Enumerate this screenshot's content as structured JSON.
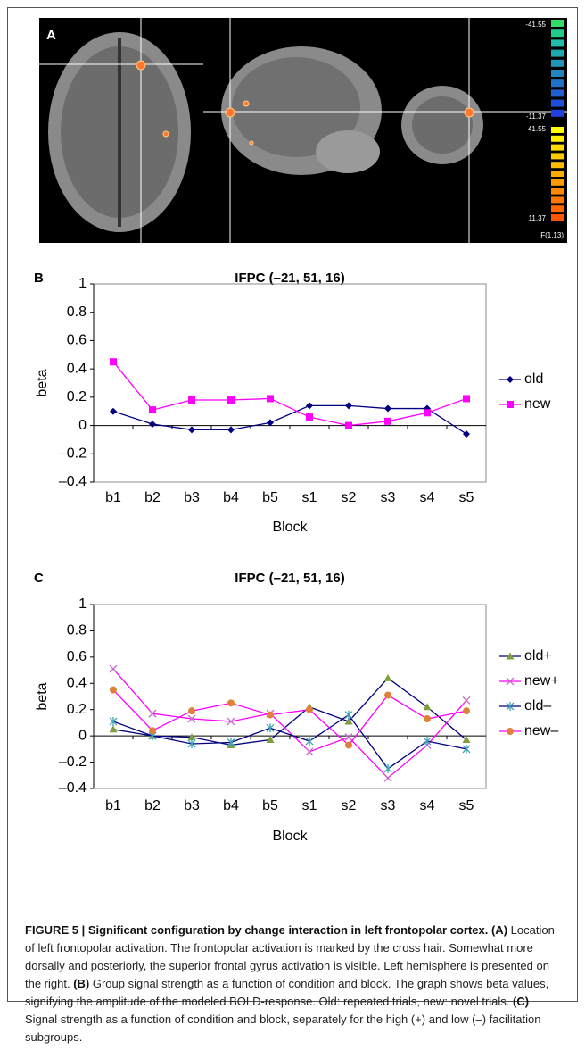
{
  "panel_a": {
    "label": "A",
    "colorbar_labels": [
      "-41.55",
      "-11.37",
      "41.55",
      "11.37",
      "F(1,13)"
    ]
  },
  "chart_data": [
    {
      "type": "line",
      "panel_label": "B",
      "title": "IFPC (–21, 51, 16)",
      "ylabel": "beta",
      "xlabel": "Block",
      "categories": [
        "b1",
        "b2",
        "b3",
        "b4",
        "b5",
        "s1",
        "s2",
        "s3",
        "s4",
        "s5"
      ],
      "ylim": [
        -0.4,
        1
      ],
      "yticks": [
        {
          "value": -0.4,
          "label": "–0.4"
        },
        {
          "value": -0.2,
          "label": "–0.2"
        },
        0,
        0.2,
        0.4,
        0.6,
        0.8,
        1
      ],
      "series": [
        {
          "name": "old",
          "color": "#000080",
          "marker_color": "#000080",
          "marker": "diamond",
          "values": [
            0.1,
            0.01,
            -0.03,
            -0.03,
            0.02,
            0.14,
            0.14,
            0.12,
            0.12,
            -0.06
          ]
        },
        {
          "name": "new",
          "color": "#ff00ff",
          "marker_color": "#ff00ff",
          "marker": "square",
          "values": [
            0.45,
            0.11,
            0.18,
            0.18,
            0.19,
            0.06,
            0.0,
            0.03,
            0.09,
            0.19
          ]
        }
      ]
    },
    {
      "type": "line",
      "panel_label": "C",
      "title": "IFPC (–21, 51, 16)",
      "ylabel": "beta",
      "xlabel": "Block",
      "categories": [
        "b1",
        "b2",
        "b3",
        "b4",
        "b5",
        "s1",
        "s2",
        "s3",
        "s4",
        "s5"
      ],
      "ylim": [
        -0.4,
        1
      ],
      "yticks": [
        {
          "value": -0.4,
          "label": "–0.4"
        },
        {
          "value": -0.2,
          "label": "–0.2"
        },
        0,
        0.2,
        0.4,
        0.6,
        0.8,
        1
      ],
      "series": [
        {
          "name": "old+",
          "color": "#000080",
          "marker_color": "#7f9f3f",
          "marker": "triangle",
          "values": [
            0.05,
            0.0,
            -0.01,
            -0.07,
            -0.03,
            0.22,
            0.11,
            0.44,
            0.22,
            -0.03
          ]
        },
        {
          "name": "new+",
          "color": "#ff00ff",
          "marker_color": "#cc66cc",
          "marker": "x",
          "values": [
            0.51,
            0.17,
            0.13,
            0.11,
            0.17,
            -0.12,
            -0.01,
            -0.32,
            -0.07,
            0.27
          ]
        },
        {
          "name": "old–",
          "color": "#000080",
          "marker_color": "#3fa3b8",
          "marker": "asterisk",
          "values": [
            0.11,
            0.0,
            -0.06,
            -0.05,
            0.06,
            -0.04,
            0.16,
            -0.25,
            -0.04,
            -0.1
          ]
        },
        {
          "name": "new–",
          "color": "#ff00ff",
          "marker_color": "#e0803a",
          "marker": "circle",
          "values": [
            0.35,
            0.04,
            0.19,
            0.25,
            0.16,
            0.2,
            -0.07,
            0.31,
            0.13,
            0.19
          ]
        }
      ]
    }
  ],
  "caption": {
    "runs": [
      {
        "text": "FIGURE 5 | Significant configuration by change interaction in left frontopolar cortex.",
        "bold": true
      },
      {
        "text": " (A)",
        "bold": true
      },
      {
        "text": " Location of left frontopolar activation. The frontopolar activation is marked by the cross hair. Somewhat more dorsally and posteriorly, the superior frontal gyrus activation is visible. Left hemisphere is presented on the right. ",
        "bold": false
      },
      {
        "text": "(B)",
        "bold": true
      },
      {
        "text": " Group signal strength as a function of condition and block. The graph shows beta values, signifying the amplitude of the modeled BOLD-response. Old: repeated trials, new: novel trials. ",
        "bold": false
      },
      {
        "text": "(C)",
        "bold": true
      },
      {
        "text": " Signal strength as a function of condition and block, separately for the high (+) and low (–) facilitation subgroups.",
        "bold": false
      }
    ]
  }
}
